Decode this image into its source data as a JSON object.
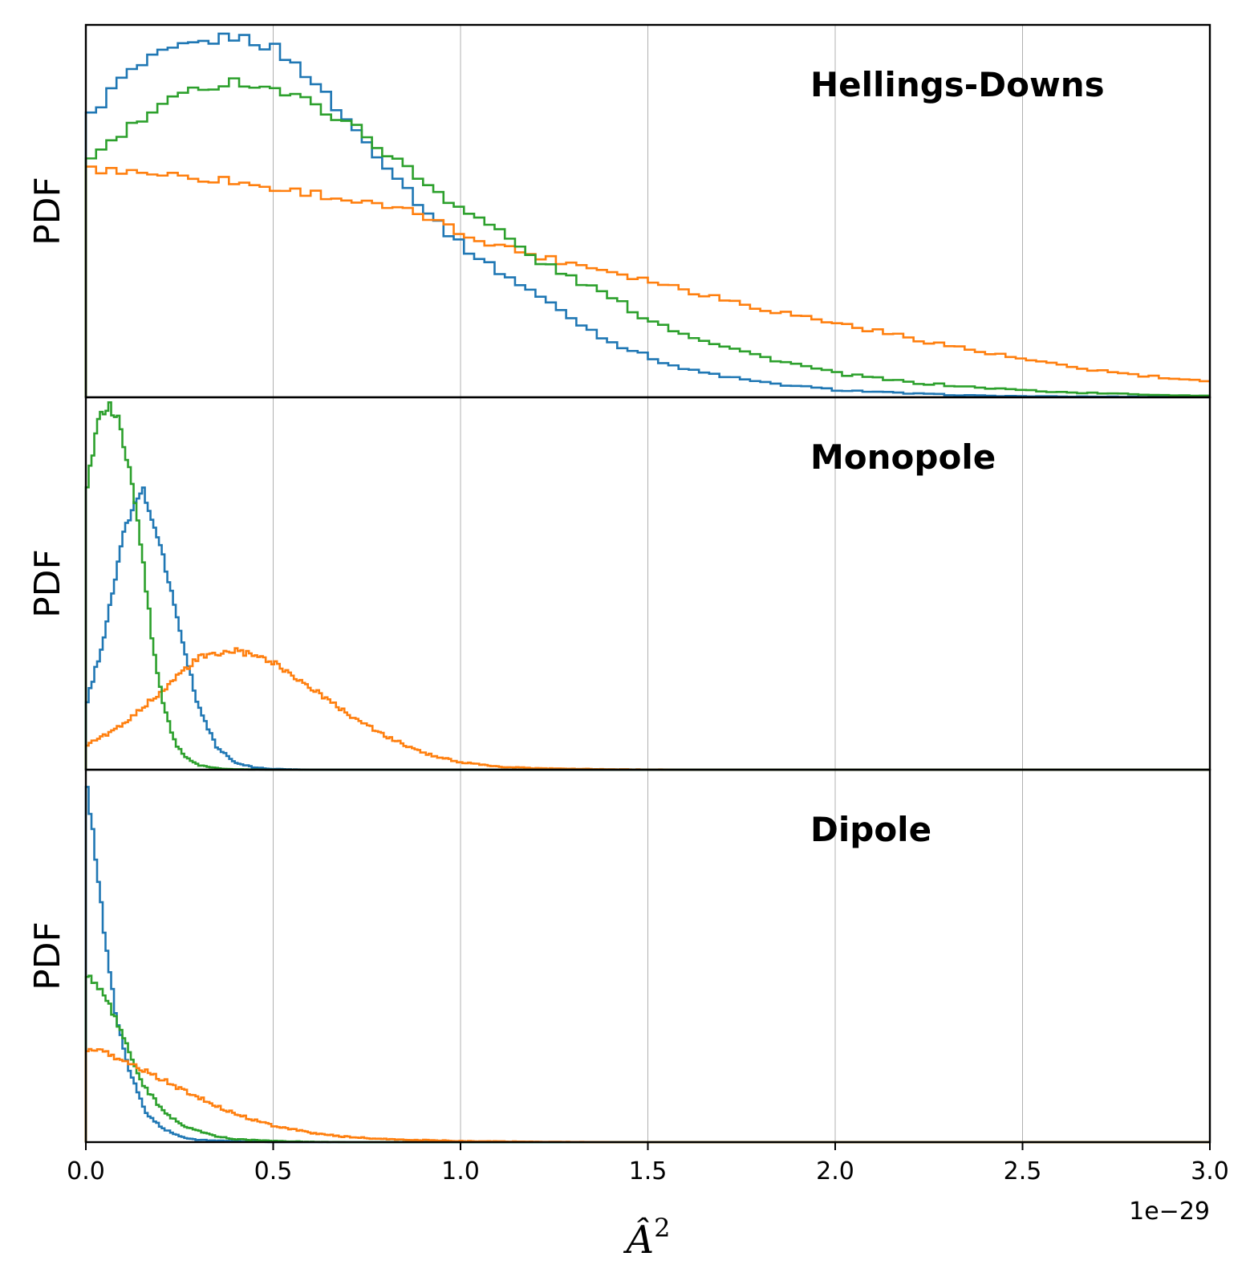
{
  "chart_data": {
    "type": "histogram-step",
    "stacked_panels": true,
    "shared_x": true,
    "xlim": [
      0,
      3.0
    ],
    "x_ticks": [
      0.0,
      0.5,
      1.0,
      1.5,
      2.0,
      2.5,
      3.0
    ],
    "x_tick_labels": [
      "0.0",
      "0.5",
      "1.0",
      "1.5",
      "2.0",
      "2.5",
      "3.0"
    ],
    "x_offset_label": "1e−29",
    "xlabel": "Â²",
    "xlabel_base": "Â",
    "xlabel_sup": "2",
    "grid": "vertical",
    "series_colors": [
      "#1f77b4",
      "#ff7f0e",
      "#2ca02c"
    ],
    "panels": [
      {
        "title": "Hellings-Downs",
        "ylabel": "PDF",
        "ylim": [
          0,
          1.0
        ],
        "bins": 110,
        "series": [
          {
            "color": "#1f77b4",
            "x": [
              0,
              0.1,
              0.2,
              0.3,
              0.4,
              0.5,
              0.6,
              0.7,
              0.8,
              0.9,
              1.0,
              1.1,
              1.2,
              1.3,
              1.4,
              1.5,
              1.6,
              1.8,
              2.0,
              2.2,
              2.4,
              2.6,
              3.0
            ],
            "y": [
              0.74,
              0.86,
              0.92,
              0.95,
              0.97,
              0.94,
              0.86,
              0.74,
              0.63,
              0.51,
              0.41,
              0.34,
              0.28,
              0.21,
              0.15,
              0.11,
              0.075,
              0.04,
              0.02,
              0.01,
              0.004,
              0.002,
              0.001
            ]
          },
          {
            "color": "#ff7f0e",
            "x": [
              0,
              0.1,
              0.2,
              0.3,
              0.4,
              0.5,
              0.6,
              0.7,
              0.8,
              0.9,
              1.0,
              1.2,
              1.4,
              1.6,
              1.8,
              2.0,
              2.2,
              2.4,
              2.6,
              2.8,
              3.0
            ],
            "y": [
              0.61,
              0.61,
              0.6,
              0.59,
              0.58,
              0.56,
              0.55,
              0.53,
              0.51,
              0.49,
              0.44,
              0.38,
              0.34,
              0.29,
              0.24,
              0.2,
              0.16,
              0.12,
              0.085,
              0.06,
              0.04
            ]
          },
          {
            "color": "#2ca02c",
            "x": [
              0,
              0.1,
              0.2,
              0.3,
              0.4,
              0.5,
              0.6,
              0.7,
              0.8,
              0.9,
              1.0,
              1.1,
              1.2,
              1.3,
              1.4,
              1.5,
              1.6,
              1.8,
              2.0,
              2.2,
              2.4,
              2.6,
              2.8,
              3.0
            ],
            "y": [
              0.63,
              0.71,
              0.78,
              0.83,
              0.85,
              0.83,
              0.79,
              0.74,
              0.66,
              0.58,
              0.51,
              0.45,
              0.37,
              0.32,
              0.27,
              0.21,
              0.17,
              0.11,
              0.065,
              0.04,
              0.025,
              0.014,
              0.008,
              0.004
            ]
          }
        ]
      },
      {
        "title": "Monopole",
        "ylabel": "PDF",
        "ylim": [
          0,
          1.0
        ],
        "bins": 400,
        "series": [
          {
            "color": "#1f77b4",
            "x": [
              0,
              0.05,
              0.1,
              0.15,
              0.2,
              0.25,
              0.3,
              0.35,
              0.4,
              0.45,
              0.5,
              0.55,
              0.6,
              0.7,
              0.8
            ],
            "y": [
              0.17,
              0.36,
              0.63,
              0.76,
              0.6,
              0.38,
              0.17,
              0.06,
              0.018,
              0.006,
              0.002,
              0.001,
              0,
              0,
              0
            ]
          },
          {
            "color": "#ff7f0e",
            "x": [
              0,
              0.1,
              0.2,
              0.3,
              0.4,
              0.5,
              0.6,
              0.7,
              0.8,
              0.9,
              1.0,
              1.1,
              1.2,
              1.4,
              1.6
            ],
            "y": [
              0.065,
              0.12,
              0.21,
              0.3,
              0.32,
              0.29,
              0.22,
              0.15,
              0.09,
              0.045,
              0.02,
              0.008,
              0.004,
              0.001,
              0
            ]
          },
          {
            "color": "#2ca02c",
            "x": [
              0,
              0.03,
              0.06,
              0.09,
              0.12,
              0.15,
              0.18,
              0.21,
              0.24,
              0.27,
              0.3,
              0.35,
              0.4,
              0.5
            ],
            "y": [
              0.73,
              0.93,
              0.98,
              0.93,
              0.79,
              0.58,
              0.33,
              0.16,
              0.07,
              0.03,
              0.012,
              0.004,
              0.001,
              0
            ]
          }
        ]
      },
      {
        "title": "Dipole",
        "ylabel": "PDF",
        "ylim": [
          0,
          1.0
        ],
        "bins": 400,
        "series": [
          {
            "color": "#1f77b4",
            "x": [
              0,
              0.02,
              0.05,
              0.08,
              0.12,
              0.16,
              0.2,
              0.25,
              0.3,
              0.4,
              0.5,
              0.6
            ],
            "y": [
              0.97,
              0.82,
              0.56,
              0.34,
              0.18,
              0.08,
              0.04,
              0.015,
              0.006,
              0.002,
              0,
              0
            ]
          },
          {
            "color": "#2ca02c",
            "x": [
              0,
              0.05,
              0.1,
              0.15,
              0.2,
              0.25,
              0.3,
              0.35,
              0.4,
              0.5,
              0.6,
              0.7
            ],
            "y": [
              0.45,
              0.4,
              0.28,
              0.16,
              0.09,
              0.05,
              0.03,
              0.015,
              0.008,
              0.003,
              0.001,
              0
            ]
          },
          {
            "color": "#ff7f0e",
            "x": [
              0,
              0.05,
              0.1,
              0.2,
              0.3,
              0.4,
              0.5,
              0.6,
              0.7,
              0.8,
              1.0,
              1.2,
              1.4
            ],
            "y": [
              0.25,
              0.24,
              0.22,
              0.17,
              0.12,
              0.075,
              0.045,
              0.025,
              0.014,
              0.008,
              0.003,
              0.001,
              0
            ]
          }
        ]
      }
    ]
  }
}
